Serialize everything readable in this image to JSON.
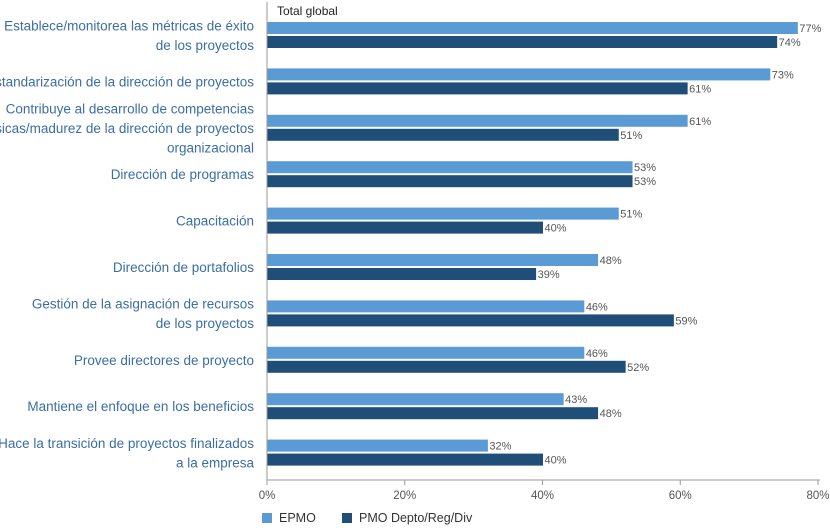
{
  "chart_data": {
    "type": "bar",
    "orientation": "horizontal",
    "title": "Total global",
    "categories": [
      [
        "Establece/monitorea las métricas de éxito",
        "de los proyectos"
      ],
      [
        "Estandarización de la dirección de proyectos"
      ],
      [
        "Contribuye al desarrollo de competencias",
        "básicas/madurez de la dirección de proyectos",
        "organizacional"
      ],
      [
        "Dirección de programas"
      ],
      [
        "Capacitación"
      ],
      [
        "Dirección de portafolios"
      ],
      [
        "Gestión de la asignación de recursos",
        "de los proyectos"
      ],
      [
        "Provee directores de proyecto"
      ],
      [
        "Mantiene el enfoque en los beneficios"
      ],
      [
        "Hace la transición de proyectos finalizados",
        "a la empresa"
      ]
    ],
    "series": [
      {
        "name": "EPMO",
        "color": "#5b9bd5",
        "values": [
          77,
          73,
          61,
          53,
          51,
          48,
          46,
          46,
          43,
          32
        ]
      },
      {
        "name": "PMO Depto/Reg/Div",
        "color": "#1f4e79",
        "values": [
          74,
          61,
          51,
          53,
          40,
          39,
          59,
          52,
          48,
          40
        ]
      }
    ],
    "xlim": [
      0,
      80
    ],
    "xticks": [
      0,
      20,
      40,
      60,
      80
    ],
    "tick_suffix": "%",
    "legend_position": "bottom-left",
    "axis_color": "#999999"
  }
}
